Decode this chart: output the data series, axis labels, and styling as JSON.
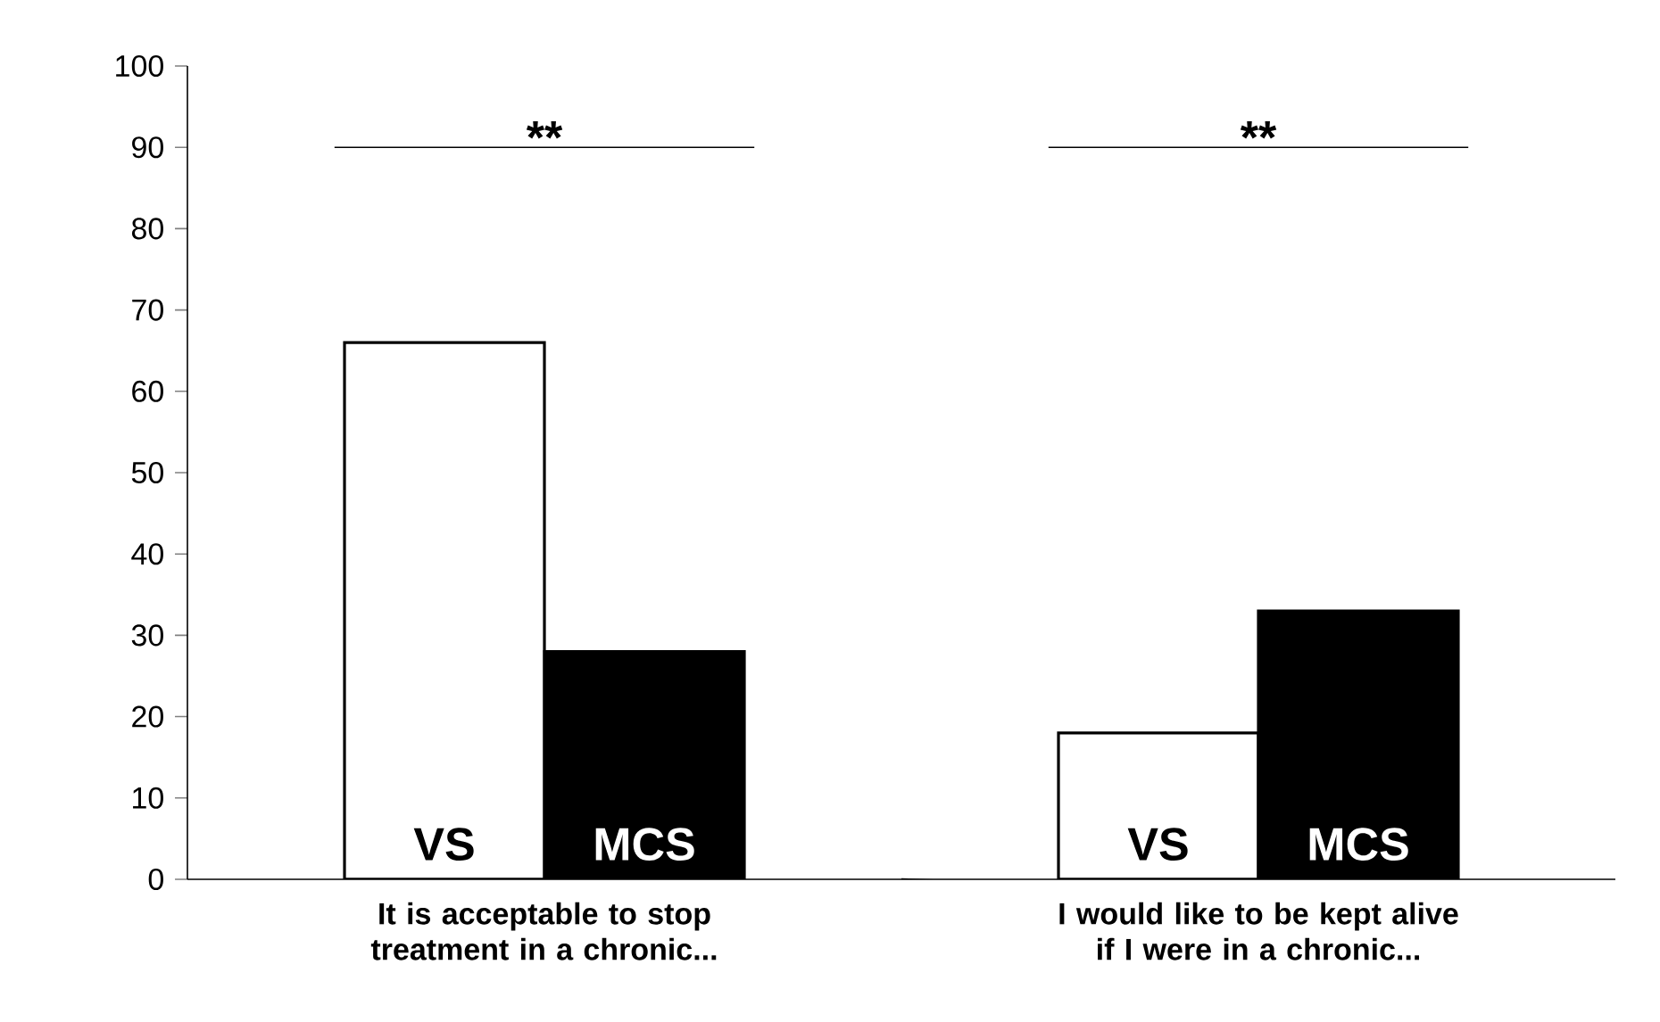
{
  "chart_data": {
    "type": "bar",
    "categories": [
      "It is acceptable to stop treatment in a chronic...",
      "I would like to be kept alive if I were in a chronic..."
    ],
    "series": [
      {
        "name": "VS",
        "color": "#ffffff",
        "values": [
          66,
          18
        ]
      },
      {
        "name": "MCS",
        "color": "#000000",
        "values": [
          28,
          33
        ]
      }
    ],
    "ylim": [
      0,
      100
    ],
    "yticks": [
      0,
      10,
      20,
      30,
      40,
      50,
      60,
      70,
      80,
      90,
      100
    ],
    "grid": false,
    "legend": false,
    "annotations": [
      "**",
      "**"
    ]
  }
}
